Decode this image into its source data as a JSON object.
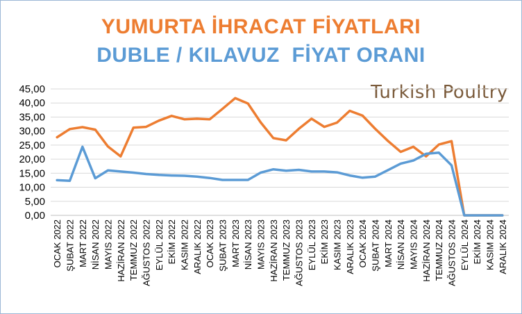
{
  "chart_data": {
    "type": "line",
    "title": "YUMURTA İHRACAT FİYATLARI",
    "subtitle": "DUBLE / KILAVUZ  FİYAT ORANI",
    "watermark": "Turkish Poultry",
    "ylim": [
      0,
      45
    ],
    "y_ticks": [
      "0,00",
      "5,00",
      "10,00",
      "15,00",
      "20,00",
      "25,00",
      "30,00",
      "35,00",
      "40,00",
      "45,00"
    ],
    "grid": true,
    "legend": "none",
    "categories": [
      "OCAK 2022",
      "ŞUBAT 2022",
      "MART 2022",
      "NİSAN 2022",
      "MAYIS 2022",
      "HAZİRAN 2022",
      "TEMMUZ 2022",
      "AĞUSTOS 2022",
      "EYLÜL 2022",
      "EKİM 2022",
      "KASIM 2022",
      "ARALIK 2022",
      "OCAK 2023",
      "ŞUBAT 2023",
      "MART 2023",
      "NİSAN 2023",
      "MAYIS 2023",
      "HAZİRAN 2023",
      "TEMMUZ 2023",
      "AĞUSTOS 2023",
      "EYLÜL 2023",
      "EKİM 2023",
      "KASIM 2023",
      "ARALIK 2023",
      "OCAK 2024",
      "ŞUBAT 2024",
      "MART 2024",
      "NİSAN 2024",
      "MAYIS 2024",
      "HAZİRAN 2024",
      "TEMMUZ 2024",
      "AĞUSTOS 2024",
      "EYLÜL 2024",
      "EKİM 2024",
      "KASIM 2024",
      "ARALIK 2024"
    ],
    "series": [
      {
        "color": "#ed7d31",
        "values": [
          27.8,
          30.7,
          31.4,
          30.5,
          24.5,
          21.0,
          31.2,
          31.5,
          33.7,
          35.4,
          34.2,
          34.4,
          34.2,
          37.9,
          41.7,
          39.8,
          33.1,
          27.5,
          26.7,
          30.8,
          34.4,
          31.5,
          33.0,
          37.2,
          35.5,
          30.8,
          26.5,
          22.6,
          24.4,
          21.0,
          25.2,
          26.4,
          0,
          0,
          0,
          0
        ]
      },
      {
        "color": "#5b9bd5",
        "values": [
          12.5,
          12.3,
          24.4,
          13.2,
          16.0,
          15.6,
          15.2,
          14.7,
          14.4,
          14.2,
          14.1,
          13.8,
          13.3,
          12.6,
          12.6,
          12.6,
          15.2,
          16.4,
          15.9,
          16.2,
          15.6,
          15.6,
          15.3,
          14.2,
          13.4,
          13.8,
          16.1,
          18.4,
          19.5,
          21.9,
          22.3,
          17.8,
          0,
          0,
          0,
          0
        ]
      }
    ]
  }
}
